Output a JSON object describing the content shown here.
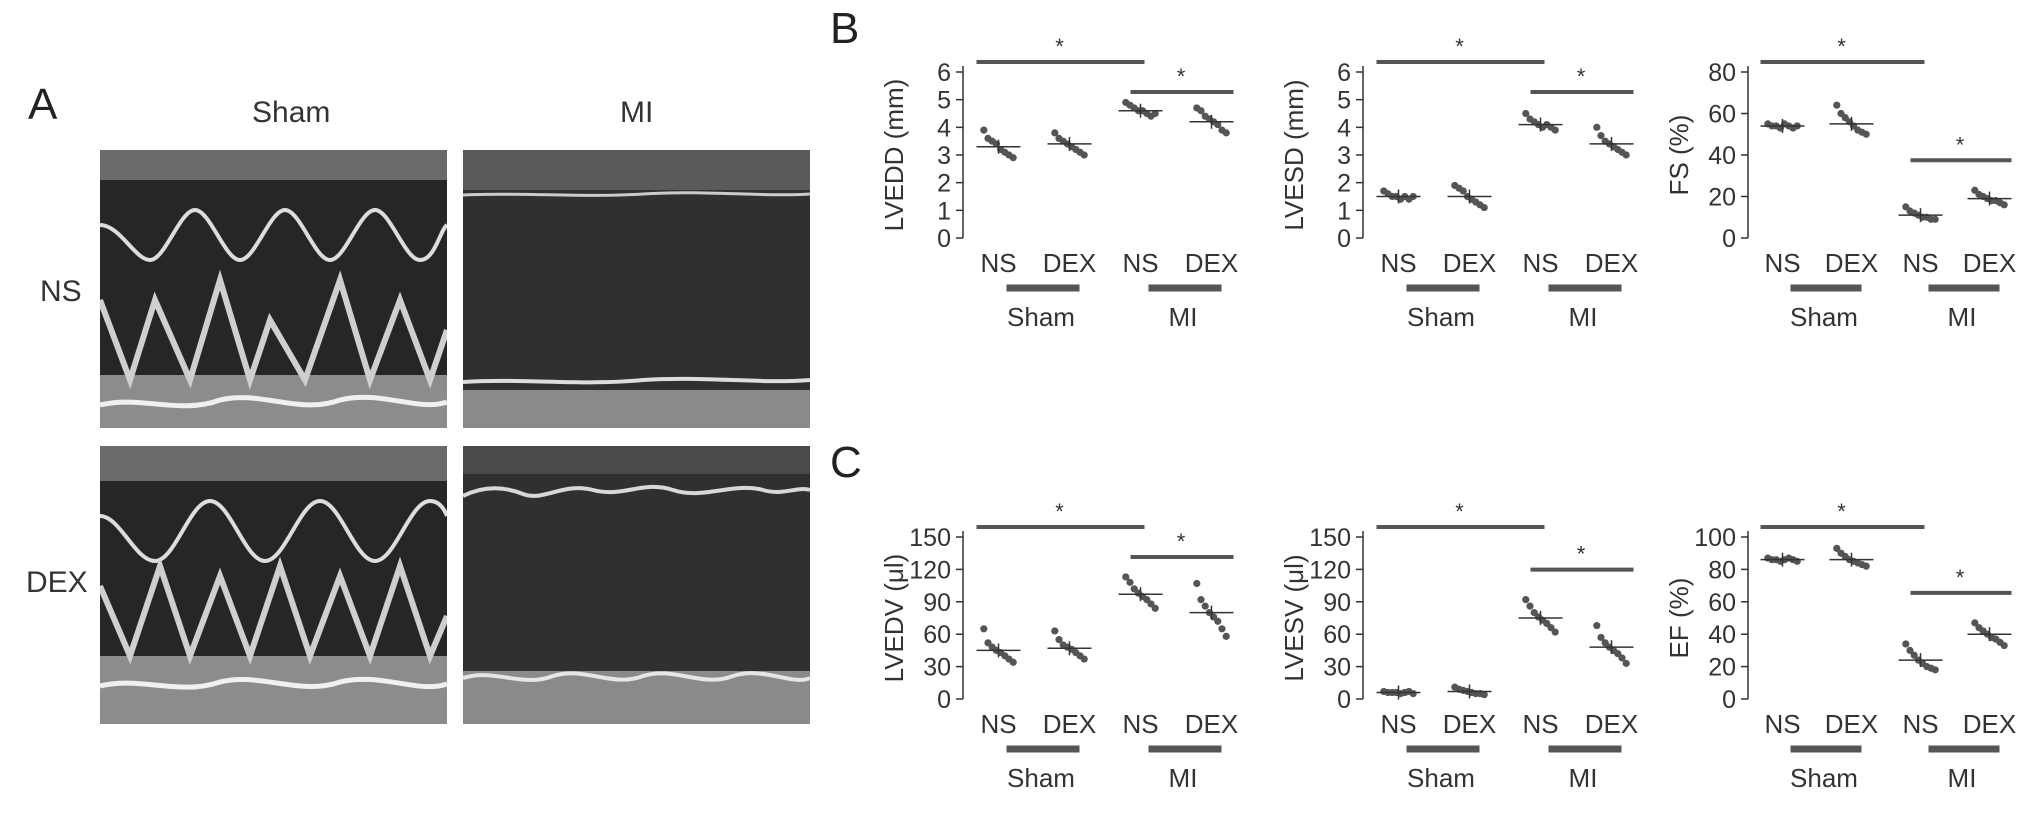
{
  "panel_labels": {
    "a": "A",
    "b": "B",
    "c": "C"
  },
  "panel_a": {
    "columns": [
      "Sham",
      "MI"
    ],
    "rows": [
      "NS",
      "DEX"
    ]
  },
  "colors": {
    "bar": "#555555",
    "dot": "#555555",
    "echo_bg": "#1e1e1e",
    "echo_line": "#e8e8e8"
  },
  "chart_data": [
    {
      "type": "scatter",
      "ylabel": "LVEDD (mm)",
      "ylim": [
        0,
        6
      ],
      "yticks": [
        0,
        1,
        2,
        3,
        4,
        5,
        6
      ],
      "groups": [
        "NS",
        "DEX",
        "NS",
        "DEX"
      ],
      "group_labels": [
        "Sham",
        "MI"
      ],
      "means": [
        3.3,
        3.4,
        4.6,
        4.2
      ],
      "points": [
        [
          3.9,
          3.6,
          3.5,
          3.4,
          3.2,
          3.1,
          3.0,
          2.9
        ],
        [
          3.8,
          3.6,
          3.5,
          3.4,
          3.3,
          3.2,
          3.1,
          3.0
        ],
        [
          4.9,
          4.8,
          4.7,
          4.6,
          4.6,
          4.5,
          4.4,
          4.5
        ],
        [
          4.7,
          4.6,
          4.4,
          4.3,
          4.2,
          4.1,
          3.9,
          3.8
        ]
      ],
      "significance": [
        {
          "from": 0,
          "to": 2,
          "label": "*"
        },
        {
          "from": 2,
          "to": 3,
          "label": "*"
        }
      ]
    },
    {
      "type": "scatter",
      "ylabel": "LVESD (mm)",
      "ylim": [
        0,
        6
      ],
      "yticks": [
        0,
        1,
        2,
        3,
        4,
        5,
        6
      ],
      "groups": [
        "NS",
        "DEX",
        "NS",
        "DEX"
      ],
      "group_labels": [
        "Sham",
        "MI"
      ],
      "means": [
        1.5,
        1.5,
        4.1,
        3.4
      ],
      "points": [
        [
          1.7,
          1.6,
          1.5,
          1.5,
          1.4,
          1.5,
          1.4,
          1.5
        ],
        [
          1.9,
          1.8,
          1.7,
          1.5,
          1.4,
          1.3,
          1.2,
          1.1
        ],
        [
          4.5,
          4.3,
          4.2,
          4.1,
          4.0,
          4.1,
          4.0,
          3.9
        ],
        [
          4.0,
          3.7,
          3.5,
          3.4,
          3.3,
          3.2,
          3.1,
          3.0
        ]
      ],
      "significance": [
        {
          "from": 0,
          "to": 2,
          "label": "*"
        },
        {
          "from": 2,
          "to": 3,
          "label": "*"
        }
      ]
    },
    {
      "type": "scatter",
      "ylabel": "FS (%)",
      "ylim": [
        0,
        80
      ],
      "yticks": [
        0,
        20,
        40,
        60,
        80
      ],
      "groups": [
        "NS",
        "DEX",
        "NS",
        "DEX"
      ],
      "group_labels": [
        "Sham",
        "MI"
      ],
      "means": [
        54,
        55,
        11,
        19
      ],
      "points": [
        [
          55,
          54,
          54,
          53,
          55,
          54,
          53,
          54
        ],
        [
          64,
          60,
          58,
          56,
          54,
          52,
          51,
          50
        ],
        [
          15,
          13,
          12,
          11,
          10,
          10,
          9,
          9
        ],
        [
          23,
          21,
          20,
          19,
          18,
          18,
          17,
          16
        ]
      ],
      "significance": [
        {
          "from": 0,
          "to": 2,
          "label": "*"
        },
        {
          "from": 2,
          "to": 3,
          "label": "*"
        }
      ]
    },
    {
      "type": "scatter",
      "ylabel": "LVEDV (μl)",
      "ylim": [
        0,
        150
      ],
      "yticks": [
        0,
        30,
        60,
        90,
        120,
        150
      ],
      "groups": [
        "NS",
        "DEX",
        "NS",
        "DEX"
      ],
      "group_labels": [
        "Sham",
        "MI"
      ],
      "means": [
        45,
        47,
        97,
        80
      ],
      "points": [
        [
          65,
          52,
          48,
          45,
          43,
          40,
          37,
          34
        ],
        [
          63,
          55,
          50,
          48,
          46,
          43,
          40,
          37
        ],
        [
          113,
          108,
          102,
          98,
          95,
          92,
          88,
          84
        ],
        [
          107,
          92,
          86,
          80,
          76,
          72,
          65,
          58
        ]
      ],
      "significance": [
        {
          "from": 0,
          "to": 2,
          "label": "*"
        },
        {
          "from": 2,
          "to": 3,
          "label": "*"
        }
      ]
    },
    {
      "type": "scatter",
      "ylabel": "LVESV (μl)",
      "ylim": [
        0,
        150
      ],
      "yticks": [
        0,
        30,
        60,
        90,
        120,
        150
      ],
      "groups": [
        "NS",
        "DEX",
        "NS",
        "DEX"
      ],
      "group_labels": [
        "Sham",
        "MI"
      ],
      "means": [
        6,
        7,
        75,
        48
      ],
      "points": [
        [
          7,
          6,
          6,
          6,
          5,
          6,
          7,
          5
        ],
        [
          11,
          9,
          8,
          7,
          6,
          5,
          5,
          4
        ],
        [
          92,
          86,
          80,
          76,
          73,
          70,
          66,
          62
        ],
        [
          68,
          57,
          52,
          48,
          45,
          42,
          38,
          33
        ]
      ],
      "significance": [
        {
          "from": 0,
          "to": 2,
          "label": "*"
        },
        {
          "from": 2,
          "to": 3,
          "label": "*"
        }
      ]
    },
    {
      "type": "scatter",
      "ylabel": "EF (%)",
      "ylim": [
        0,
        100
      ],
      "yticks": [
        0,
        20,
        40,
        60,
        80,
        100
      ],
      "groups": [
        "NS",
        "DEX",
        "NS",
        "DEX"
      ],
      "group_labels": [
        "Sham",
        "MI"
      ],
      "means": [
        86,
        86,
        24,
        40
      ],
      "points": [
        [
          87,
          86,
          86,
          85,
          86,
          87,
          86,
          85
        ],
        [
          93,
          90,
          88,
          86,
          85,
          84,
          83,
          82
        ],
        [
          34,
          30,
          27,
          24,
          22,
          20,
          19,
          18
        ],
        [
          47,
          44,
          42,
          40,
          38,
          37,
          35,
          33
        ]
      ],
      "significance": [
        {
          "from": 0,
          "to": 2,
          "label": "*"
        },
        {
          "from": 2,
          "to": 3,
          "label": "*"
        }
      ]
    }
  ]
}
